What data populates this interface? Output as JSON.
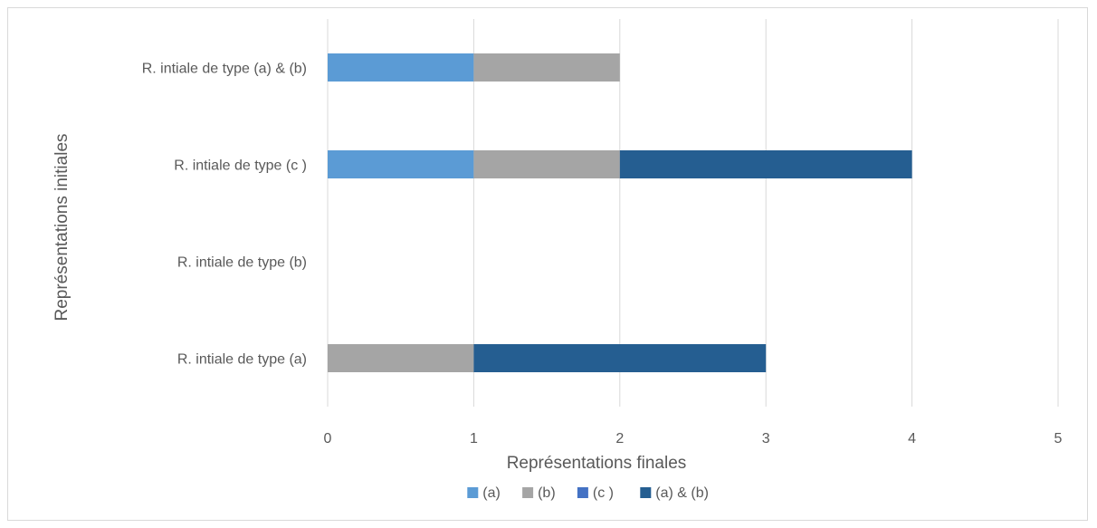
{
  "chart_data": {
    "type": "bar",
    "orientation": "horizontal",
    "stacked": true,
    "categories": [
      "R. intiale de type (a)",
      "R. intiale de type (b)",
      "R. intiale de type (c )",
      "R. intiale de type (a) & (b)"
    ],
    "series": [
      {
        "name": "(a)",
        "color": "#5B9BD5",
        "values": [
          0,
          0,
          1,
          1
        ]
      },
      {
        "name": "(b)",
        "color": "#A5A5A5",
        "values": [
          1,
          0,
          1,
          1
        ]
      },
      {
        "name": "(c )",
        "color": "#4472C4",
        "values": [
          0,
          0,
          0,
          0
        ]
      },
      {
        "name": "(a) & (b)",
        "color": "#255E91",
        "values": [
          2,
          0,
          2,
          0
        ]
      }
    ],
    "xlabel": "Représentations finales",
    "ylabel": "Représentations initiales",
    "xlim": [
      0,
      5
    ],
    "xticks": [
      "0",
      "1",
      "2",
      "3",
      "4",
      "5"
    ],
    "grid": true,
    "legend_position": "bottom"
  }
}
